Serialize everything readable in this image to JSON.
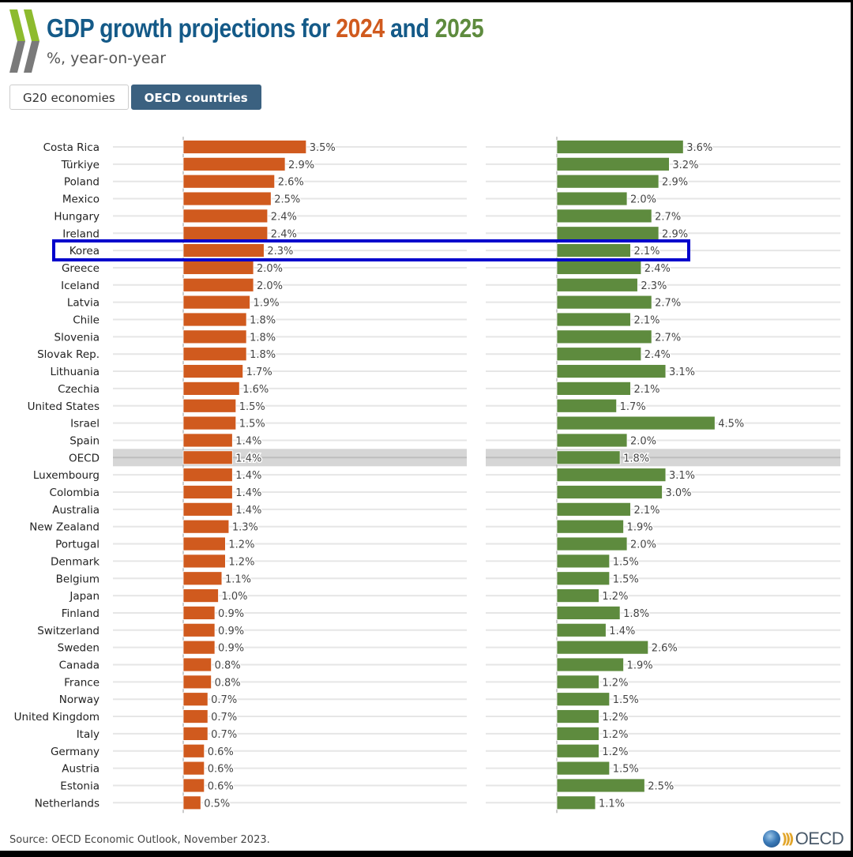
{
  "header": {
    "title_prefix": "GDP growth projections for ",
    "title_year1": "2024",
    "title_mid": " and ",
    "title_year2": "2025",
    "subtitle": "%, year-on-year"
  },
  "tabs": [
    {
      "label": "G20 economies",
      "active": false
    },
    {
      "label": "OECD countries",
      "active": true
    }
  ],
  "colors": {
    "title": "#145a88",
    "year_2024": "#d05a1e",
    "year_2025": "#5e8b3e",
    "active_tab": "#3b6180",
    "highlight_box": "#0000cc",
    "aggregate_band": "#d6d6d6"
  },
  "footer": {
    "source": "Source: OECD Economic Outlook, November 2023.",
    "logo_text": "OECD"
  },
  "chart_data": {
    "type": "bar",
    "orientation": "horizontal",
    "title": "GDP growth projections for 2024 and 2025",
    "subtitle": "%, year-on-year",
    "xlabel": "",
    "ylabel": "",
    "unit": "%",
    "xlim": [
      0,
      5
    ],
    "grid": true,
    "highlighted_category": "Korea",
    "aggregate_category": "OECD",
    "categories": [
      "Costa Rica",
      "Türkiye",
      "Poland",
      "Mexico",
      "Hungary",
      "Ireland",
      "Korea",
      "Greece",
      "Iceland",
      "Latvia",
      "Chile",
      "Slovenia",
      "Slovak Rep.",
      "Lithuania",
      "Czechia",
      "United States",
      "Israel",
      "Spain",
      "OECD",
      "Luxembourg",
      "Colombia",
      "Australia",
      "New Zealand",
      "Portugal",
      "Denmark",
      "Belgium",
      "Japan",
      "Finland",
      "Switzerland",
      "Sweden",
      "Canada",
      "France",
      "Norway",
      "United Kingdom",
      "Italy",
      "Germany",
      "Austria",
      "Estonia",
      "Netherlands"
    ],
    "series": [
      {
        "name": "2024",
        "color": "#d05a1e",
        "values": [
          3.5,
          2.9,
          2.6,
          2.5,
          2.4,
          2.4,
          2.3,
          2.0,
          2.0,
          1.9,
          1.8,
          1.8,
          1.8,
          1.7,
          1.6,
          1.5,
          1.5,
          1.4,
          1.4,
          1.4,
          1.4,
          1.4,
          1.3,
          1.2,
          1.2,
          1.1,
          1.0,
          0.9,
          0.9,
          0.9,
          0.8,
          0.8,
          0.7,
          0.7,
          0.7,
          0.6,
          0.6,
          0.6,
          0.5
        ]
      },
      {
        "name": "2025",
        "color": "#5e8b3e",
        "values": [
          3.6,
          3.2,
          2.9,
          2.0,
          2.7,
          2.9,
          2.1,
          2.4,
          2.3,
          2.7,
          2.1,
          2.7,
          2.4,
          3.1,
          2.1,
          1.7,
          4.5,
          2.0,
          1.8,
          3.1,
          3.0,
          2.1,
          1.9,
          2.0,
          1.5,
          1.5,
          1.2,
          1.8,
          1.4,
          2.6,
          1.9,
          1.2,
          1.5,
          1.2,
          1.2,
          1.2,
          1.5,
          2.5,
          1.1
        ]
      }
    ]
  }
}
